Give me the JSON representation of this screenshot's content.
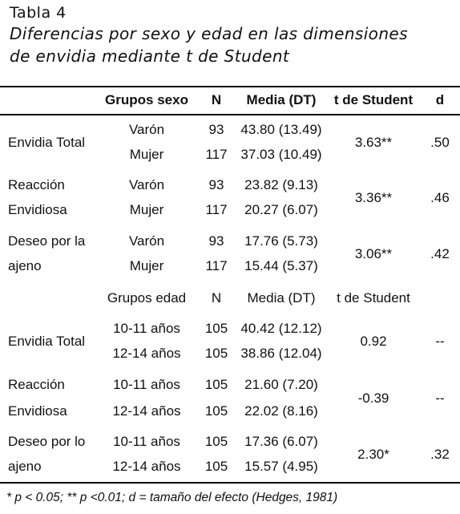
{
  "table": {
    "label": "Tabla 4",
    "title_line1": "Diferencias por sexo y edad en las dimensiones",
    "title_line2": "de envidia mediante t de Student",
    "sexo_header": [
      "Grupos sexo",
      "N",
      "Media (DT)",
      "t de Student",
      "d"
    ],
    "sexo_blocks": [
      {
        "dimension": [
          "Envidia Total"
        ],
        "groups": [
          "Varón",
          "Mujer"
        ],
        "n": [
          "93",
          "117"
        ],
        "media": [
          "43.80 (13.49)",
          "37.03 (10.49)"
        ],
        "t": "3.63**",
        "d": ".50"
      },
      {
        "dimension": [
          "Reacción",
          "Envidiosa"
        ],
        "groups": [
          "Varón",
          "Mujer"
        ],
        "n": [
          "93",
          "117"
        ],
        "media": [
          "23.82 (9.13)",
          "20.27 (6.07)"
        ],
        "t": "3.36**",
        "d": ".46"
      },
      {
        "dimension": [
          "Deseo por la",
          "ajeno"
        ],
        "groups": [
          "Varón",
          "Mujer"
        ],
        "n": [
          "93",
          "117"
        ],
        "media": [
          "17.76 (5.73)",
          "15.44 (5.37)"
        ],
        "t": "3.06**",
        "d": ".42"
      }
    ],
    "edad_header": [
      "Grupos edad",
      "N",
      "Media (DT)",
      "t de Student"
    ],
    "edad_blocks": [
      {
        "dimension": [
          "Envidia Total"
        ],
        "groups": [
          "10-11 años",
          "12-14 años"
        ],
        "n": [
          "105",
          "105"
        ],
        "media": [
          "40.42 (12.12)",
          "38.86 (12.04)"
        ],
        "t": "0.92",
        "d": "--"
      },
      {
        "dimension": [
          "Reacción",
          "Envidiosa"
        ],
        "groups": [
          "10-11 años",
          "12-14 años"
        ],
        "n": [
          "105",
          "105"
        ],
        "media": [
          "21.60 (7.20)",
          "22.02 (8.16)"
        ],
        "t": "-0.39",
        "d": "--"
      },
      {
        "dimension": [
          "Deseo por lo",
          "ajeno"
        ],
        "groups": [
          "10-11 años",
          "12-14 años"
        ],
        "n": [
          "105",
          "105"
        ],
        "media": [
          "17.36 (6.07)",
          "15.57 (4.95)"
        ],
        "t": "2.30*",
        "d": ".32"
      }
    ],
    "footnote": "* p < 0.05; ** p <0.01; d = tamaño del efecto (Hedges, 1981)"
  }
}
